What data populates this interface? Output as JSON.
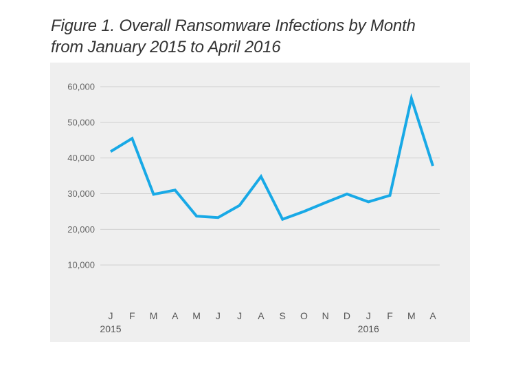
{
  "chart_data": {
    "type": "line",
    "title_line1": "Figure 1. Overall Ransomware Infections by Month",
    "title_line2": "from January 2015 to April 2016",
    "categories": [
      "J",
      "F",
      "M",
      "A",
      "M",
      "J",
      "J",
      "A",
      "S",
      "O",
      "N",
      "D",
      "J",
      "F",
      "M",
      "A"
    ],
    "year_labels": [
      {
        "index": 0,
        "label": "2015"
      },
      {
        "index": 12,
        "label": "2016"
      }
    ],
    "series": [
      {
        "color": "#18a9e6",
        "values": [
          41800,
          45500,
          29800,
          31000,
          23700,
          23300,
          26700,
          34800,
          22800,
          25000,
          27500,
          29900,
          27700,
          29500,
          56700,
          37800
        ]
      }
    ],
    "yticks": [
      10000,
      20000,
      30000,
      40000,
      50000,
      60000
    ],
    "ytick_labels": [
      "10,000",
      "20,000",
      "30,000",
      "40,000",
      "50,000",
      "60,000"
    ],
    "ylim": [
      0,
      60000
    ],
    "grid": true,
    "background_color": "#efefef",
    "grid_color": "#cfcfcf"
  }
}
